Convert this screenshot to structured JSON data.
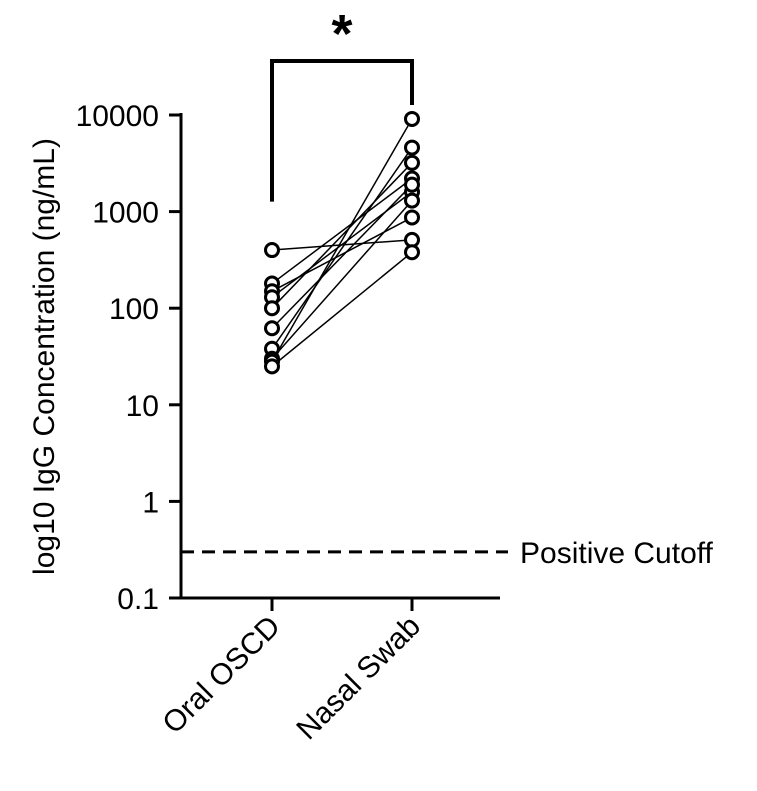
{
  "chart_data": {
    "type": "scatter",
    "subtype": "paired-dot",
    "ylabel": "log10 IgG Concentration (ng/mL)",
    "yscale": "log",
    "ylim": [
      0.1,
      10000
    ],
    "yticks": [
      "0.1",
      "1",
      "10",
      "100",
      "1000",
      "10000"
    ],
    "yticks_values": [
      0.1,
      1,
      10,
      100,
      1000,
      10000
    ],
    "categories": [
      "Oral OSCD",
      "Nasal Swab"
    ],
    "pairs": [
      [
        400,
        510
      ],
      [
        180,
        2200
      ],
      [
        150,
        870
      ],
      [
        130,
        1600
      ],
      [
        100,
        3200
      ],
      [
        62,
        1900
      ],
      [
        38,
        4600
      ],
      [
        30,
        1300
      ],
      [
        28,
        9100
      ],
      [
        25,
        380
      ]
    ],
    "reference_line": {
      "value": 0.3,
      "label": "Positive Cutoff",
      "style": "dashed"
    },
    "significance": {
      "label": "*",
      "between": [
        "Oral OSCD",
        "Nasal Swab"
      ]
    },
    "grid": false,
    "legend": "none",
    "colors": {
      "marker": "#000000",
      "line": "#000000"
    }
  }
}
